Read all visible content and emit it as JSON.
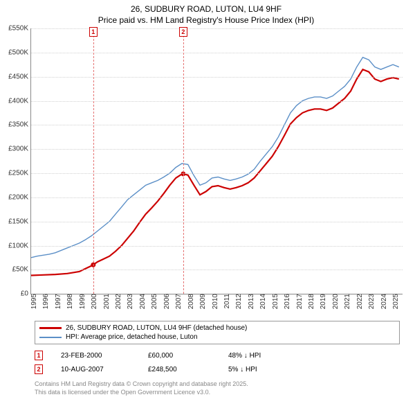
{
  "title_line1": "26, SUDBURY ROAD, LUTON, LU4 9HF",
  "title_line2": "Price paid vs. HM Land Registry's House Price Index (HPI)",
  "chart": {
    "type": "line",
    "xlim": [
      1995,
      2025.8
    ],
    "ylim": [
      0,
      550000
    ],
    "ytick_step": 50000,
    "ytick_labels": [
      "£0",
      "£50K",
      "£100K",
      "£150K",
      "£200K",
      "£250K",
      "£300K",
      "£350K",
      "£400K",
      "£450K",
      "£500K",
      "£550K"
    ],
    "xtick_years": [
      1995,
      1996,
      1997,
      1998,
      1999,
      2000,
      2001,
      2002,
      2003,
      2004,
      2005,
      2006,
      2007,
      2008,
      2009,
      2010,
      2011,
      2012,
      2013,
      2014,
      2015,
      2016,
      2017,
      2018,
      2019,
      2020,
      2021,
      2022,
      2023,
      2024,
      2025
    ],
    "background_color": "#ffffff",
    "grid_color": "#d0d0d0",
    "hpi_color": "#5b8fc7",
    "sale_color": "#cc0000",
    "marker_vline_color": "#e57373",
    "sale_points": [
      {
        "x": 2000.15,
        "y": 60000
      },
      {
        "x": 2007.61,
        "y": 248500
      }
    ],
    "hpi_series": [
      {
        "x": 1995.0,
        "y": 75000
      },
      {
        "x": 1995.5,
        "y": 78000
      },
      {
        "x": 1996.0,
        "y": 80000
      },
      {
        "x": 1996.5,
        "y": 82000
      },
      {
        "x": 1997.0,
        "y": 85000
      },
      {
        "x": 1997.5,
        "y": 90000
      },
      {
        "x": 1998.0,
        "y": 95000
      },
      {
        "x": 1998.5,
        "y": 100000
      },
      {
        "x": 1999.0,
        "y": 105000
      },
      {
        "x": 1999.5,
        "y": 112000
      },
      {
        "x": 2000.0,
        "y": 120000
      },
      {
        "x": 2000.5,
        "y": 130000
      },
      {
        "x": 2001.0,
        "y": 140000
      },
      {
        "x": 2001.5,
        "y": 150000
      },
      {
        "x": 2002.0,
        "y": 165000
      },
      {
        "x": 2002.5,
        "y": 180000
      },
      {
        "x": 2003.0,
        "y": 195000
      },
      {
        "x": 2003.5,
        "y": 205000
      },
      {
        "x": 2004.0,
        "y": 215000
      },
      {
        "x": 2004.5,
        "y": 225000
      },
      {
        "x": 2005.0,
        "y": 230000
      },
      {
        "x": 2005.5,
        "y": 235000
      },
      {
        "x": 2006.0,
        "y": 242000
      },
      {
        "x": 2006.5,
        "y": 250000
      },
      {
        "x": 2007.0,
        "y": 262000
      },
      {
        "x": 2007.5,
        "y": 270000
      },
      {
        "x": 2008.0,
        "y": 268000
      },
      {
        "x": 2008.5,
        "y": 245000
      },
      {
        "x": 2009.0,
        "y": 225000
      },
      {
        "x": 2009.5,
        "y": 230000
      },
      {
        "x": 2010.0,
        "y": 240000
      },
      {
        "x": 2010.5,
        "y": 242000
      },
      {
        "x": 2011.0,
        "y": 238000
      },
      {
        "x": 2011.5,
        "y": 235000
      },
      {
        "x": 2012.0,
        "y": 238000
      },
      {
        "x": 2012.5,
        "y": 242000
      },
      {
        "x": 2013.0,
        "y": 248000
      },
      {
        "x": 2013.5,
        "y": 258000
      },
      {
        "x": 2014.0,
        "y": 275000
      },
      {
        "x": 2014.5,
        "y": 290000
      },
      {
        "x": 2015.0,
        "y": 305000
      },
      {
        "x": 2015.5,
        "y": 325000
      },
      {
        "x": 2016.0,
        "y": 350000
      },
      {
        "x": 2016.5,
        "y": 375000
      },
      {
        "x": 2017.0,
        "y": 390000
      },
      {
        "x": 2017.5,
        "y": 400000
      },
      {
        "x": 2018.0,
        "y": 405000
      },
      {
        "x": 2018.5,
        "y": 408000
      },
      {
        "x": 2019.0,
        "y": 408000
      },
      {
        "x": 2019.5,
        "y": 405000
      },
      {
        "x": 2020.0,
        "y": 410000
      },
      {
        "x": 2020.5,
        "y": 420000
      },
      {
        "x": 2021.0,
        "y": 430000
      },
      {
        "x": 2021.5,
        "y": 445000
      },
      {
        "x": 2022.0,
        "y": 470000
      },
      {
        "x": 2022.5,
        "y": 490000
      },
      {
        "x": 2023.0,
        "y": 485000
      },
      {
        "x": 2023.5,
        "y": 470000
      },
      {
        "x": 2024.0,
        "y": 465000
      },
      {
        "x": 2024.5,
        "y": 470000
      },
      {
        "x": 2025.0,
        "y": 475000
      },
      {
        "x": 2025.5,
        "y": 470000
      }
    ],
    "sale_series": [
      {
        "x": 1995.0,
        "y": 38000
      },
      {
        "x": 1996.0,
        "y": 39000
      },
      {
        "x": 1997.0,
        "y": 40000
      },
      {
        "x": 1998.0,
        "y": 42000
      },
      {
        "x": 1999.0,
        "y": 46000
      },
      {
        "x": 1999.5,
        "y": 52000
      },
      {
        "x": 2000.0,
        "y": 58000
      },
      {
        "x": 2000.15,
        "y": 60000
      },
      {
        "x": 2000.15,
        "y": 60000
      },
      {
        "x": 2000.5,
        "y": 66000
      },
      {
        "x": 2001.0,
        "y": 72000
      },
      {
        "x": 2001.5,
        "y": 78000
      },
      {
        "x": 2002.0,
        "y": 88000
      },
      {
        "x": 2002.5,
        "y": 100000
      },
      {
        "x": 2003.0,
        "y": 115000
      },
      {
        "x": 2003.5,
        "y": 130000
      },
      {
        "x": 2004.0,
        "y": 148000
      },
      {
        "x": 2004.5,
        "y": 165000
      },
      {
        "x": 2005.0,
        "y": 178000
      },
      {
        "x": 2005.5,
        "y": 192000
      },
      {
        "x": 2006.0,
        "y": 208000
      },
      {
        "x": 2006.5,
        "y": 225000
      },
      {
        "x": 2007.0,
        "y": 240000
      },
      {
        "x": 2007.5,
        "y": 248000
      },
      {
        "x": 2007.61,
        "y": 248500
      },
      {
        "x": 2007.61,
        "y": 248500
      },
      {
        "x": 2008.0,
        "y": 246000
      },
      {
        "x": 2008.5,
        "y": 225000
      },
      {
        "x": 2009.0,
        "y": 205000
      },
      {
        "x": 2009.5,
        "y": 212000
      },
      {
        "x": 2010.0,
        "y": 222000
      },
      {
        "x": 2010.5,
        "y": 224000
      },
      {
        "x": 2011.0,
        "y": 220000
      },
      {
        "x": 2011.5,
        "y": 217000
      },
      {
        "x": 2012.0,
        "y": 220000
      },
      {
        "x": 2012.5,
        "y": 224000
      },
      {
        "x": 2013.0,
        "y": 230000
      },
      {
        "x": 2013.5,
        "y": 240000
      },
      {
        "x": 2014.0,
        "y": 255000
      },
      {
        "x": 2014.5,
        "y": 270000
      },
      {
        "x": 2015.0,
        "y": 285000
      },
      {
        "x": 2015.5,
        "y": 305000
      },
      {
        "x": 2016.0,
        "y": 328000
      },
      {
        "x": 2016.5,
        "y": 352000
      },
      {
        "x": 2017.0,
        "y": 365000
      },
      {
        "x": 2017.5,
        "y": 375000
      },
      {
        "x": 2018.0,
        "y": 380000
      },
      {
        "x": 2018.5,
        "y": 383000
      },
      {
        "x": 2019.0,
        "y": 383000
      },
      {
        "x": 2019.5,
        "y": 380000
      },
      {
        "x": 2020.0,
        "y": 385000
      },
      {
        "x": 2020.5,
        "y": 395000
      },
      {
        "x": 2021.0,
        "y": 405000
      },
      {
        "x": 2021.5,
        "y": 420000
      },
      {
        "x": 2022.0,
        "y": 445000
      },
      {
        "x": 2022.5,
        "y": 465000
      },
      {
        "x": 2023.0,
        "y": 460000
      },
      {
        "x": 2023.5,
        "y": 445000
      },
      {
        "x": 2024.0,
        "y": 440000
      },
      {
        "x": 2024.5,
        "y": 445000
      },
      {
        "x": 2025.0,
        "y": 448000
      },
      {
        "x": 2025.5,
        "y": 445000
      }
    ]
  },
  "legend": {
    "sale_label": "26, SUDBURY ROAD, LUTON, LU4 9HF (detached house)",
    "hpi_label": "HPI: Average price, detached house, Luton"
  },
  "footer_rows": [
    {
      "n": "1",
      "date": "23-FEB-2000",
      "price": "£60,000",
      "delta": "48% ↓ HPI"
    },
    {
      "n": "2",
      "date": "10-AUG-2007",
      "price": "£248,500",
      "delta": "5% ↓ HPI"
    }
  ],
  "license_line1": "Contains HM Land Registry data © Crown copyright and database right 2025.",
  "license_line2": "This data is licensed under the Open Government Licence v3.0."
}
